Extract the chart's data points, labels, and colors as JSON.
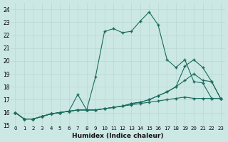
{
  "xlabel": "Humidex (Indice chaleur)",
  "xlim": [
    -0.5,
    23.5
  ],
  "ylim": [
    15,
    24.5
  ],
  "yticks": [
    15,
    16,
    17,
    18,
    19,
    20,
    21,
    22,
    23,
    24
  ],
  "xticks": [
    0,
    1,
    2,
    3,
    4,
    5,
    6,
    7,
    8,
    9,
    10,
    11,
    12,
    13,
    14,
    15,
    16,
    17,
    18,
    19,
    20,
    21,
    22,
    23
  ],
  "bg_color": "#cce8e4",
  "grid_color": "#b8d8d4",
  "line_color": "#1a6b5e",
  "lines": [
    {
      "x": [
        0,
        1,
        2,
        3,
        4,
        5,
        6,
        7,
        8,
        9,
        10,
        11,
        12,
        13,
        14,
        15,
        16,
        17,
        18,
        19,
        20,
        21,
        22,
        23
      ],
      "y": [
        16.0,
        15.5,
        15.5,
        15.7,
        15.9,
        16.0,
        16.1,
        16.2,
        16.2,
        18.8,
        22.3,
        22.5,
        22.2,
        22.3,
        23.1,
        23.8,
        22.8,
        20.1,
        19.5,
        20.1,
        18.4,
        18.3,
        17.1,
        17.1
      ]
    },
    {
      "x": [
        0,
        1,
        2,
        3,
        4,
        5,
        6,
        7,
        8,
        9,
        10,
        11,
        12,
        13,
        14,
        15,
        16,
        17,
        18,
        19,
        20,
        21,
        22,
        23
      ],
      "y": [
        16.0,
        15.5,
        15.5,
        15.7,
        15.9,
        16.0,
        16.1,
        17.4,
        16.2,
        16.2,
        16.3,
        16.4,
        16.5,
        16.7,
        16.8,
        17.0,
        17.3,
        17.6,
        18.0,
        19.6,
        20.1,
        19.5,
        18.4,
        17.1
      ]
    },
    {
      "x": [
        0,
        1,
        2,
        3,
        4,
        5,
        6,
        7,
        8,
        9,
        10,
        11,
        12,
        13,
        14,
        15,
        16,
        17,
        18,
        19,
        20,
        21,
        22,
        23
      ],
      "y": [
        16.0,
        15.5,
        15.5,
        15.7,
        15.9,
        16.0,
        16.1,
        16.2,
        16.2,
        16.2,
        16.3,
        16.4,
        16.5,
        16.7,
        16.8,
        17.0,
        17.3,
        17.6,
        18.0,
        18.5,
        19.0,
        18.5,
        18.4,
        17.1
      ]
    },
    {
      "x": [
        0,
        1,
        2,
        3,
        4,
        5,
        6,
        7,
        8,
        9,
        10,
        11,
        12,
        13,
        14,
        15,
        16,
        17,
        18,
        19,
        20,
        21,
        22,
        23
      ],
      "y": [
        16.0,
        15.5,
        15.5,
        15.7,
        15.9,
        16.0,
        16.1,
        16.2,
        16.2,
        16.2,
        16.3,
        16.4,
        16.5,
        16.6,
        16.7,
        16.8,
        16.9,
        17.0,
        17.1,
        17.2,
        17.1,
        17.1,
        17.1,
        17.1
      ]
    }
  ]
}
